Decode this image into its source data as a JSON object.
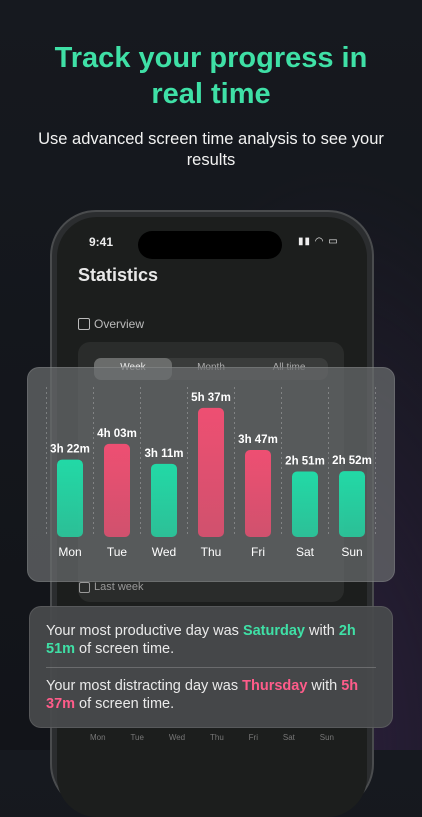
{
  "header": {
    "title": "Track your progress in real time",
    "subtitle": "Use advanced screen time analysis to see your results"
  },
  "phone": {
    "time": "9:41",
    "screen_title": "Statistics",
    "section": "Overview",
    "tabs": [
      "Week",
      "Month",
      "All time"
    ],
    "last_week": "Last week",
    "bottom_days": [
      "Mon",
      "Tue",
      "Wed",
      "Thu",
      "Fri",
      "Sat",
      "Sun"
    ]
  },
  "chart_data": {
    "type": "bar",
    "categories": [
      "Mon",
      "Tue",
      "Wed",
      "Thu",
      "Fri",
      "Sat",
      "Sun"
    ],
    "values": [
      202,
      243,
      191,
      337,
      227,
      171,
      172
    ],
    "value_labels": [
      "3h 22m",
      "4h 03m",
      "3h 11m",
      "5h 37m",
      "3h 47m",
      "2h 51m",
      "2h 52m"
    ],
    "colors": [
      "#22d9a6",
      "#ee4f72",
      "#22d9a6",
      "#ee4f72",
      "#ee4f72",
      "#22d9a6",
      "#22d9a6"
    ]
  },
  "insights": [
    {
      "parts": [
        "Your most productive day was ",
        "Saturday",
        " with ",
        "2h 51m",
        " of screen time."
      ]
    },
    {
      "parts": [
        "Your most distracting day was ",
        "Thursday",
        " with ",
        "5h 37m",
        " of screen time."
      ]
    }
  ]
}
